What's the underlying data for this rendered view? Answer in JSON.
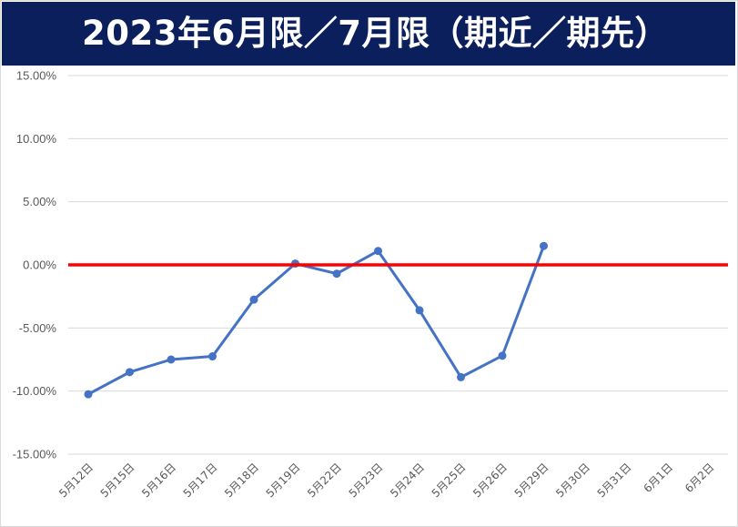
{
  "colors": {
    "title_bg": "#0b1f5c",
    "title_text": "#ffffff",
    "series": "#4472c4",
    "zero_line": "#ff0000",
    "gridline": "#d9d9d9",
    "tick_text": "#595959"
  },
  "chart_data": {
    "type": "line",
    "title": "2023年6月限／7月限（期近／期先）",
    "xlabel": "",
    "ylabel": "",
    "categories": [
      "5月12日",
      "5月15日",
      "5月16日",
      "5月17日",
      "5月18日",
      "5月19日",
      "5月22日",
      "5月23日",
      "5月24日",
      "5月25日",
      "5月26日",
      "5月29日",
      "5月30日",
      "5月31日",
      "6月1日",
      "6月2日"
    ],
    "y_tick_labels": [
      "15.00%",
      "10.00%",
      "5.00%",
      "0.00%",
      "-5.00%",
      "-10.00%",
      "-15.00%"
    ],
    "y_ticks": [
      15,
      10,
      5,
      0,
      -5,
      -10,
      -15
    ],
    "ylim": [
      -15,
      15
    ],
    "y_unit": "percent",
    "grid": true,
    "legend": "none",
    "reference_line": {
      "y": 0,
      "color": "#ff0000"
    },
    "series": [
      {
        "values": [
          -10.25,
          -8.5,
          -7.5,
          -7.25,
          -2.75,
          0.1,
          -0.7,
          1.1,
          -3.6,
          -8.9,
          -7.2,
          1.5,
          null,
          null,
          null,
          null
        ]
      }
    ]
  }
}
